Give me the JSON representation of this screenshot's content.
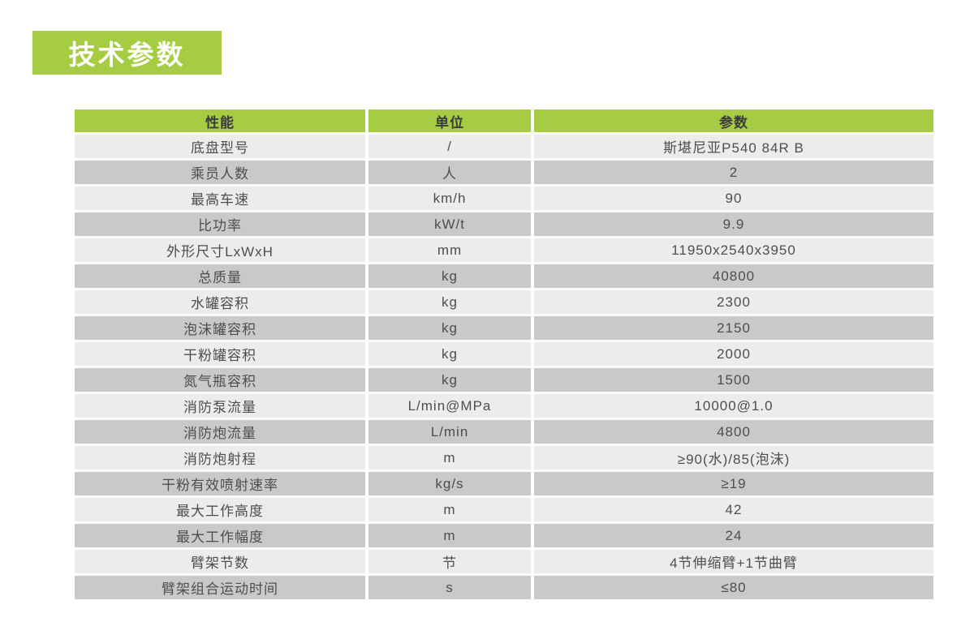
{
  "page": {
    "title_badge": {
      "label": "技术参数",
      "bg_color": "#a6cc43",
      "text_color": "#ffffff"
    },
    "background": "#ffffff"
  },
  "table": {
    "header": {
      "bg_color": "#a6cc43",
      "text_color": "#3b3b3b",
      "columns": [
        "性能",
        "单位",
        "参数"
      ]
    },
    "row_colors": {
      "odd": "#ececec",
      "even": "#c9c9c9"
    },
    "rows": [
      {
        "name": "底盘型号",
        "unit": "/",
        "value": "斯堪尼亚P540 84R B"
      },
      {
        "name": "乘员人数",
        "unit": "人",
        "value": "2"
      },
      {
        "name": "最高车速",
        "unit": "km/h",
        "value": "90"
      },
      {
        "name": "比功率",
        "unit": "kW/t",
        "value": "9.9"
      },
      {
        "name": "外形尺寸LxWxH",
        "unit": "mm",
        "value": "11950x2540x3950"
      },
      {
        "name": "总质量",
        "unit": "kg",
        "value": "40800"
      },
      {
        "name": "水罐容积",
        "unit": "kg",
        "value": "2300"
      },
      {
        "name": "泡沫罐容积",
        "unit": "kg",
        "value": "2150"
      },
      {
        "name": "干粉罐容积",
        "unit": "kg",
        "value": "2000"
      },
      {
        "name": "氮气瓶容积",
        "unit": "kg",
        "value": "1500"
      },
      {
        "name": "消防泵流量",
        "unit": "L/min@MPa",
        "value": "10000@1.0"
      },
      {
        "name": "消防炮流量",
        "unit": "L/min",
        "value": "4800"
      },
      {
        "name": "消防炮射程",
        "unit": "m",
        "value": "≥90(水)/85(泡沫)"
      },
      {
        "name": "干粉有效喷射速率",
        "unit": "kg/s",
        "value": "≥19"
      },
      {
        "name": "最大工作高度",
        "unit": "m",
        "value": "42"
      },
      {
        "name": "最大工作幅度",
        "unit": "m",
        "value": "24"
      },
      {
        "name": "臂架节数",
        "unit": "节",
        "value": "4节伸缩臂+1节曲臂"
      },
      {
        "name": "臂架组合运动时间",
        "unit": "s",
        "value": "≤80"
      }
    ]
  }
}
